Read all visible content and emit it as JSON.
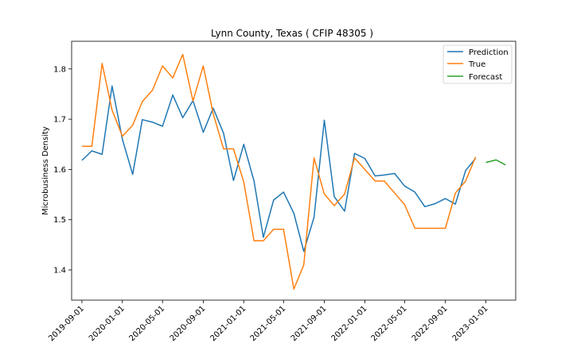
{
  "chart_data": {
    "type": "line",
    "title": "Lynn County, Texas ( CFIP 48305 )",
    "xlabel": "",
    "ylabel": "Microbusiness Density",
    "ylim": [
      1.34,
      1.855
    ],
    "xlim": [
      "2019-08-01",
      "2023-04-01"
    ],
    "grid": false,
    "legend_position": "top-right",
    "x_ticks": [
      "2019-09-01",
      "2020-01-01",
      "2020-05-01",
      "2020-09-01",
      "2021-01-01",
      "2021-05-01",
      "2021-09-01",
      "2022-01-01",
      "2022-05-01",
      "2022-09-01",
      "2023-01-01"
    ],
    "y_ticks": [
      1.4,
      1.5,
      1.6,
      1.7,
      1.8
    ],
    "y_tick_labels": [
      "1.4",
      "1.5",
      "1.6",
      "1.7",
      "1.8"
    ],
    "series": [
      {
        "name": "Prediction",
        "color": "#1f77b4",
        "x": [
          "2019-09-01",
          "2019-10-01",
          "2019-11-01",
          "2019-12-01",
          "2020-01-01",
          "2020-02-01",
          "2020-03-01",
          "2020-04-01",
          "2020-05-01",
          "2020-06-01",
          "2020-07-01",
          "2020-08-01",
          "2020-09-01",
          "2020-10-01",
          "2020-11-01",
          "2020-12-01",
          "2021-01-01",
          "2021-02-01",
          "2021-03-01",
          "2021-04-01",
          "2021-05-01",
          "2021-06-01",
          "2021-07-01",
          "2021-08-01",
          "2021-09-01",
          "2021-10-01",
          "2021-11-01",
          "2021-12-01",
          "2022-01-01",
          "2022-02-01",
          "2022-03-01",
          "2022-04-01",
          "2022-05-01",
          "2022-06-01",
          "2022-07-01",
          "2022-08-01",
          "2022-09-01",
          "2022-10-01",
          "2022-11-01",
          "2022-12-01"
        ],
        "values": [
          1.618,
          1.637,
          1.63,
          1.766,
          1.66,
          1.59,
          1.699,
          1.694,
          1.686,
          1.748,
          1.703,
          1.737,
          1.674,
          1.722,
          1.672,
          1.578,
          1.65,
          1.577,
          1.465,
          1.539,
          1.555,
          1.513,
          1.437,
          1.505,
          1.698,
          1.546,
          1.517,
          1.632,
          1.622,
          1.587,
          1.589,
          1.592,
          1.567,
          1.555,
          1.526,
          1.532,
          1.542,
          1.531,
          1.598,
          1.622
        ]
      },
      {
        "name": "True",
        "color": "#ff7f0e",
        "x": [
          "2019-09-01",
          "2019-10-01",
          "2019-11-01",
          "2019-12-01",
          "2020-01-01",
          "2020-02-01",
          "2020-03-01",
          "2020-04-01",
          "2020-05-01",
          "2020-06-01",
          "2020-07-01",
          "2020-08-01",
          "2020-09-01",
          "2020-10-01",
          "2020-11-01",
          "2020-12-01",
          "2021-01-01",
          "2021-02-01",
          "2021-03-01",
          "2021-04-01",
          "2021-05-01",
          "2021-06-01",
          "2021-07-01",
          "2021-08-01",
          "2021-09-01",
          "2021-10-01",
          "2021-11-01",
          "2021-12-01",
          "2022-01-01",
          "2022-02-01",
          "2022-03-01",
          "2022-04-01",
          "2022-05-01",
          "2022-06-01",
          "2022-07-01",
          "2022-08-01",
          "2022-09-01",
          "2022-10-01",
          "2022-11-01",
          "2022-12-01"
        ],
        "values": [
          1.646,
          1.646,
          1.811,
          1.718,
          1.666,
          1.688,
          1.735,
          1.758,
          1.806,
          1.782,
          1.829,
          1.736,
          1.806,
          1.711,
          1.641,
          1.641,
          1.575,
          1.458,
          1.458,
          1.481,
          1.481,
          1.362,
          1.41,
          1.623,
          1.551,
          1.528,
          1.551,
          1.623,
          1.6,
          1.577,
          1.577,
          1.553,
          1.53,
          1.483,
          1.483,
          1.483,
          1.483,
          1.553,
          1.577,
          1.625
        ]
      },
      {
        "name": "Forecast",
        "color": "#2ca02c",
        "x": [
          "2023-01-01",
          "2023-02-01",
          "2023-03-01"
        ],
        "values": [
          1.614,
          1.619,
          1.609
        ]
      }
    ]
  }
}
